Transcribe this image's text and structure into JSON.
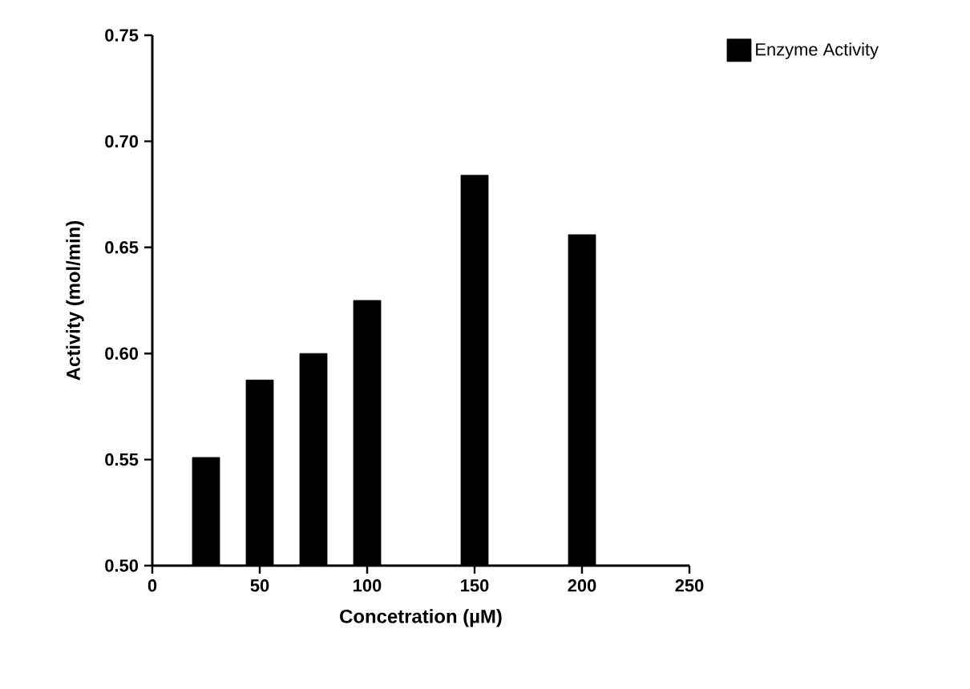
{
  "chart_data": {
    "type": "bar",
    "xlabel": "Concetration (µM)",
    "ylabel": "Activity (mol/min)",
    "x": [
      25,
      50,
      75,
      100,
      150,
      200
    ],
    "series": [
      {
        "name": "Enzyme Activity",
        "color": "#000000",
        "values": [
          0.551,
          0.5875,
          0.6,
          0.625,
          0.684,
          0.656
        ]
      }
    ],
    "xlim": [
      0,
      250
    ],
    "xticks": [
      0,
      50,
      100,
      150,
      200,
      250
    ],
    "ylim": [
      0.5,
      0.75
    ],
    "yticks": [
      {
        "value": 0.5,
        "label": "0.50"
      },
      {
        "value": 0.55,
        "label": "0.55"
      },
      {
        "value": 0.6,
        "label": "0.60"
      },
      {
        "value": 0.65,
        "label": "0.65"
      },
      {
        "value": 0.7,
        "label": "0.70"
      },
      {
        "value": 0.75,
        "label": "0.75"
      }
    ],
    "grid": false,
    "legend": "top right"
  }
}
